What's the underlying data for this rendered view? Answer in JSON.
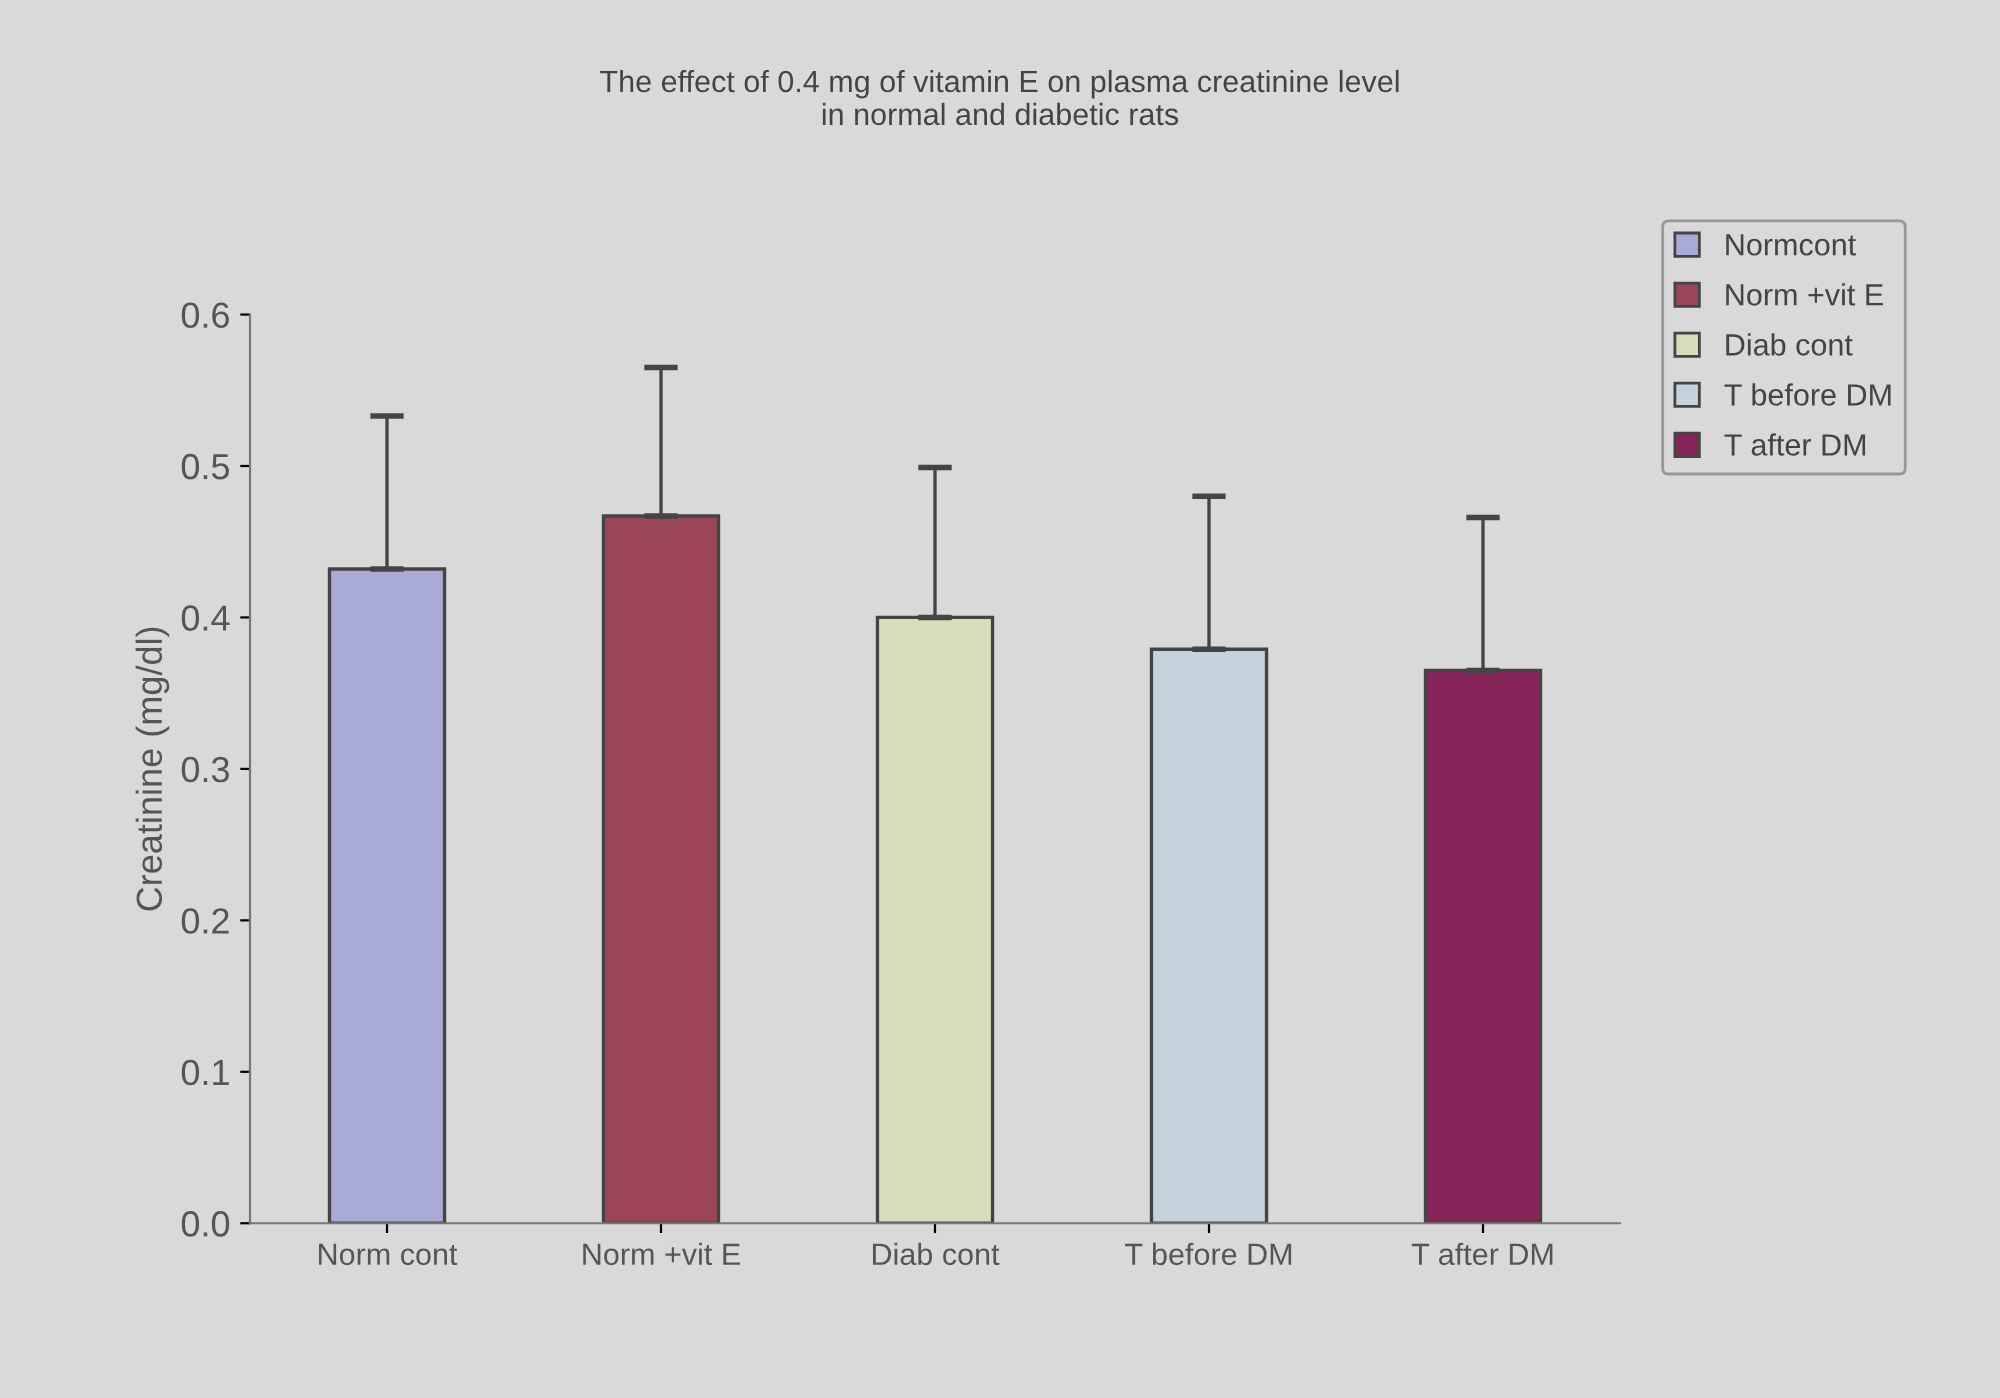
{
  "chart_data": {
    "type": "bar",
    "title": "The effect of 0.4 mg of vitamin E on plasma creatinine level\nin normal and diabetic rats",
    "ylabel": "Creatinine (mg/dl)",
    "categories": [
      "Norm cont",
      "Norm +vit E",
      "Diab cont",
      "T before DM",
      "T after DM"
    ],
    "series": [
      {
        "name": "Normcont",
        "color": "#aaaad8",
        "values": [
          0.432,
          null,
          null,
          null,
          null
        ],
        "errors": [
          0.101,
          null,
          null,
          null,
          null
        ]
      },
      {
        "name": "Norm +vit E",
        "color": "#9a4658",
        "values": [
          null,
          0.467,
          null,
          null,
          null
        ],
        "errors": [
          null,
          0.098,
          null,
          null,
          null
        ]
      },
      {
        "name": "Diab cont",
        "color": "#d8dcb8",
        "values": [
          null,
          null,
          0.4,
          null,
          null
        ],
        "errors": [
          null,
          null,
          0.099,
          null,
          null
        ]
      },
      {
        "name": "T before DM",
        "color": "#c4d2dc",
        "values": [
          null,
          null,
          null,
          0.379,
          null
        ],
        "errors": [
          null,
          null,
          null,
          0.101,
          null
        ]
      },
      {
        "name": "T after DM",
        "color": "#852458",
        "values": [
          null,
          null,
          null,
          null,
          0.365
        ],
        "errors": [
          null,
          null,
          null,
          null,
          0.101
        ]
      }
    ],
    "ylim": [
      0,
      0.6
    ],
    "yticks": [
      {
        "value": 0,
        "label": "0.0"
      },
      {
        "value": 0.1,
        "label": "0.1"
      },
      {
        "value": 0.2,
        "label": "0.2"
      },
      {
        "value": 0.3,
        "label": "0.3"
      },
      {
        "value": 0.4,
        "label": "0.4"
      },
      {
        "value": 0.5,
        "label": "0.5"
      },
      {
        "value": 0.6,
        "label": "0.6"
      }
    ],
    "grid": false,
    "legend": "right"
  }
}
